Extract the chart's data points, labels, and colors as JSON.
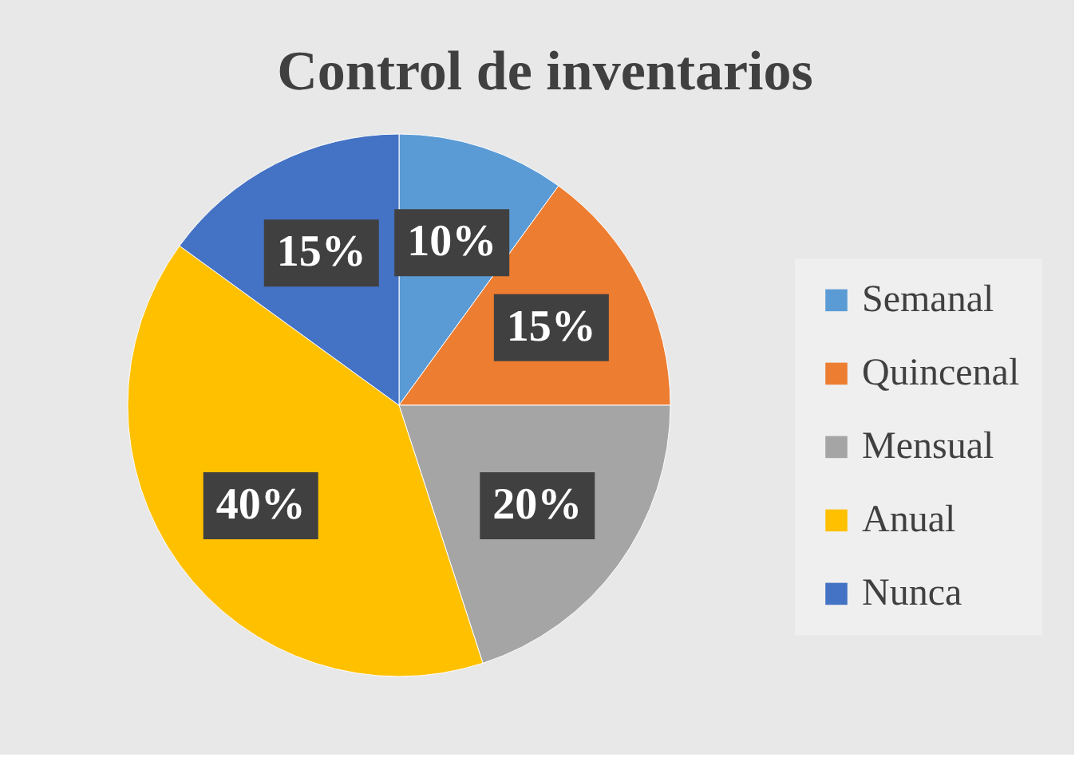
{
  "chart_data": {
    "type": "pie",
    "title": "Control de inventarios",
    "categories": [
      "Semanal",
      "Quincenal",
      "Mensual",
      "Anual",
      "Nunca"
    ],
    "values": [
      10,
      15,
      20,
      40,
      15
    ],
    "colors": [
      "#5b9bd5",
      "#ed7d31",
      "#a5a5a5",
      "#ffc000",
      "#4472c4"
    ],
    "value_labels": [
      "10%",
      "15%",
      "20%",
      "40%",
      "15%"
    ],
    "legend": "right"
  }
}
